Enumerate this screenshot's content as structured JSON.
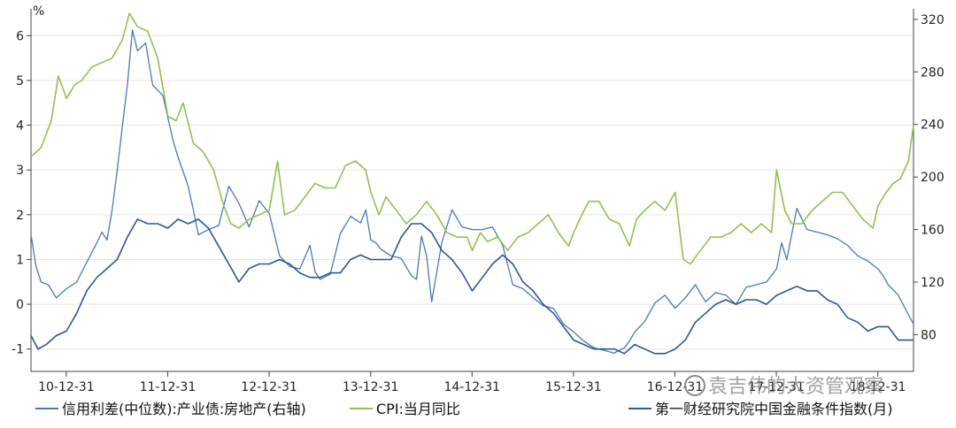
{
  "chart_data": {
    "type": "line",
    "left_axis": {
      "unit": "%",
      "ticks": [
        "-1",
        "0",
        "1",
        "2",
        "3",
        "4",
        "5",
        "6"
      ],
      "range": [
        -1.5,
        6.6
      ]
    },
    "right_axis": {
      "ticks": [
        "80",
        "120",
        "160",
        "200",
        "240",
        "280",
        "320"
      ],
      "range": [
        52,
        328
      ]
    },
    "x_ticks": [
      "10-12-31",
      "11-12-31",
      "12-12-31",
      "13-12-31",
      "14-12-31",
      "15-12-31",
      "16-12-31",
      "17-12-31",
      "18-12-31"
    ],
    "x_range": [
      2010.65,
      2019.35
    ],
    "series": [
      {
        "name": "信用利差(中位数):产业债:房地产(右轴)",
        "axis": "right",
        "color": "#4a78b6",
        "x": [
          2010.65,
          2010.7,
          2010.75,
          2010.82,
          2010.9,
          2011.0,
          2011.1,
          2011.2,
          2011.3,
          2011.35,
          2011.4,
          2011.45,
          2011.5,
          2011.55,
          2011.6,
          2011.65,
          2011.7,
          2011.78,
          2011.85,
          2011.95,
          2012.05,
          2012.1,
          2012.2,
          2012.25,
          2012.3,
          2012.4,
          2012.5,
          2012.6,
          2012.7,
          2012.8,
          2012.9,
          2013.0,
          2013.1,
          2013.2,
          2013.3,
          2013.4,
          2013.45,
          2013.5,
          2013.6,
          2013.7,
          2013.8,
          2013.9,
          2013.95,
          2014.0,
          2014.05,
          2014.1,
          2014.2,
          2014.3,
          2014.4,
          2014.45,
          2014.5,
          2014.55,
          2014.6,
          2014.7,
          2014.8,
          2014.9,
          2015.0,
          2015.1,
          2015.2,
          2015.3,
          2015.4,
          2015.5,
          2015.6,
          2015.7,
          2015.8,
          2015.9,
          2016.0,
          2016.1,
          2016.2,
          2016.3,
          2016.4,
          2016.5,
          2016.55,
          2016.6,
          2016.7,
          2016.8,
          2016.9,
          2017.0,
          2017.1,
          2017.2,
          2017.3,
          2017.4,
          2017.5,
          2017.6,
          2017.7,
          2017.8,
          2017.9,
          2018.0,
          2018.05,
          2018.1,
          2018.2,
          2018.3,
          2018.4,
          2018.5,
          2018.6,
          2018.7,
          2018.8,
          2018.9,
          2019.0,
          2019.05,
          2019.1,
          2019.2,
          2019.3,
          2019.35
        ],
        "values": [
          156,
          132,
          120,
          118,
          108,
          115,
          120,
          135,
          150,
          158,
          152,
          175,
          205,
          238,
          270,
          312,
          296,
          302,
          270,
          262,
          228,
          215,
          193,
          175,
          156,
          160,
          163,
          193,
          180,
          162,
          182,
          172,
          140,
          132,
          130,
          148,
          128,
          122,
          126,
          157,
          170,
          165,
          175,
          152,
          150,
          145,
          140,
          138,
          125,
          122,
          155,
          140,
          105,
          150,
          175,
          162,
          160,
          160,
          162,
          148,
          118,
          115,
          108,
          102,
          100,
          88,
          82,
          75,
          70,
          68,
          66,
          70,
          75,
          82,
          90,
          104,
          110,
          100,
          108,
          118,
          105,
          112,
          110,
          103,
          116,
          118,
          120,
          130,
          150,
          137,
          176,
          160,
          158,
          156,
          153,
          148,
          140,
          136,
          130,
          125,
          118,
          110,
          95,
          88
        ],
        "values_note": ""
      },
      {
        "name": "CPI:当月同比",
        "axis": "left",
        "color": "#92c050",
        "x": [
          2010.65,
          2010.75,
          2010.85,
          2010.92,
          2011.0,
          2011.08,
          2011.15,
          2011.25,
          2011.35,
          2011.45,
          2011.55,
          2011.62,
          2011.7,
          2011.8,
          2011.9,
          2012.0,
          2012.08,
          2012.15,
          2012.25,
          2012.35,
          2012.45,
          2012.55,
          2012.62,
          2012.7,
          2012.8,
          2012.9,
          2013.0,
          2013.08,
          2013.15,
          2013.25,
          2013.35,
          2013.45,
          2013.55,
          2013.65,
          2013.75,
          2013.85,
          2013.95,
          2014.0,
          2014.08,
          2014.15,
          2014.25,
          2014.35,
          2014.45,
          2014.55,
          2014.65,
          2014.75,
          2014.85,
          2014.95,
          2015.0,
          2015.08,
          2015.15,
          2015.25,
          2015.35,
          2015.45,
          2015.55,
          2015.65,
          2015.75,
          2015.85,
          2015.95,
          2016.0,
          2016.08,
          2016.15,
          2016.25,
          2016.35,
          2016.45,
          2016.55,
          2016.62,
          2016.7,
          2016.8,
          2016.9,
          2017.0,
          2017.08,
          2017.15,
          2017.25,
          2017.35,
          2017.45,
          2017.55,
          2017.65,
          2017.75,
          2017.85,
          2017.95,
          2018.0,
          2018.08,
          2018.15,
          2018.25,
          2018.35,
          2018.45,
          2018.55,
          2018.65,
          2018.75,
          2018.85,
          2018.95,
          2019.0,
          2019.08,
          2019.15,
          2019.22,
          2019.3,
          2019.35
        ],
        "values": [
          3.3,
          3.5,
          4.1,
          5.1,
          4.6,
          4.9,
          5.0,
          5.3,
          5.4,
          5.5,
          5.9,
          6.5,
          6.2,
          6.1,
          5.5,
          4.2,
          4.1,
          4.5,
          3.6,
          3.4,
          3.0,
          2.2,
          1.8,
          1.7,
          1.9,
          2.0,
          2.1,
          3.2,
          2.0,
          2.1,
          2.4,
          2.7,
          2.6,
          2.6,
          3.1,
          3.2,
          3.0,
          2.5,
          2.0,
          2.4,
          2.1,
          1.8,
          2.0,
          2.3,
          2.0,
          1.6,
          1.5,
          1.5,
          1.2,
          1.6,
          1.4,
          1.5,
          1.2,
          1.5,
          1.6,
          1.8,
          2.0,
          1.6,
          1.3,
          1.6,
          2.0,
          2.3,
          2.3,
          1.9,
          1.8,
          1.3,
          1.9,
          2.1,
          2.3,
          2.1,
          2.5,
          1.0,
          0.9,
          1.2,
          1.5,
          1.5,
          1.6,
          1.8,
          1.6,
          1.8,
          1.6,
          3.0,
          2.1,
          1.8,
          1.8,
          2.1,
          2.3,
          2.5,
          2.5,
          2.2,
          1.9,
          1.7,
          2.2,
          2.5,
          2.7,
          2.8,
          3.2,
          4.0
        ],
        "values_note": ""
      },
      {
        "name": "第一财经研究院中国金融条件指数(月)",
        "axis": "left",
        "color": "#2e5597",
        "x": [
          2010.65,
          2010.72,
          2010.8,
          2010.9,
          2011.0,
          2011.1,
          2011.2,
          2011.3,
          2011.4,
          2011.5,
          2011.6,
          2011.7,
          2011.8,
          2011.9,
          2012.0,
          2012.1,
          2012.2,
          2012.3,
          2012.4,
          2012.5,
          2012.6,
          2012.7,
          2012.8,
          2012.9,
          2013.0,
          2013.1,
          2013.2,
          2013.3,
          2013.4,
          2013.5,
          2013.6,
          2013.7,
          2013.8,
          2013.9,
          2014.0,
          2014.1,
          2014.2,
          2014.3,
          2014.4,
          2014.5,
          2014.6,
          2014.7,
          2014.8,
          2014.9,
          2015.0,
          2015.1,
          2015.2,
          2015.3,
          2015.4,
          2015.5,
          2015.6,
          2015.7,
          2015.8,
          2015.9,
          2016.0,
          2016.1,
          2016.2,
          2016.3,
          2016.4,
          2016.5,
          2016.6,
          2016.7,
          2016.8,
          2016.9,
          2017.0,
          2017.1,
          2017.2,
          2017.3,
          2017.4,
          2017.5,
          2017.6,
          2017.7,
          2017.8,
          2017.9,
          2018.0,
          2018.1,
          2018.2,
          2018.3,
          2018.4,
          2018.5,
          2018.6,
          2018.7,
          2018.8,
          2018.9,
          2019.0,
          2019.1,
          2019.2,
          2019.3,
          2019.35
        ],
        "values": [
          -0.7,
          -1.0,
          -0.9,
          -0.7,
          -0.6,
          -0.2,
          0.3,
          0.6,
          0.8,
          1.0,
          1.5,
          1.9,
          1.8,
          1.8,
          1.7,
          1.9,
          1.8,
          1.9,
          1.7,
          1.3,
          0.9,
          0.5,
          0.8,
          0.9,
          0.9,
          1.0,
          0.9,
          0.7,
          0.6,
          0.6,
          0.7,
          0.7,
          1.0,
          1.1,
          1.0,
          1.0,
          1.0,
          1.5,
          1.8,
          1.8,
          1.6,
          1.2,
          1.0,
          0.7,
          0.3,
          0.6,
          0.9,
          1.1,
          0.9,
          0.5,
          0.3,
          0.0,
          -0.2,
          -0.5,
          -0.8,
          -0.9,
          -1.0,
          -1.0,
          -1.0,
          -1.1,
          -0.9,
          -1.0,
          -1.1,
          -1.1,
          -1.0,
          -0.8,
          -0.4,
          -0.2,
          0.0,
          0.1,
          0.0,
          0.1,
          0.1,
          0.0,
          0.2,
          0.3,
          0.4,
          0.3,
          0.3,
          0.1,
          0.0,
          -0.3,
          -0.4,
          -0.6,
          -0.5,
          -0.5,
          -0.8,
          -0.8,
          -0.8
        ],
        "values_note": ""
      }
    ],
    "legend_placement": "bottom",
    "grid": true
  },
  "watermark": "袁吉伟的大资管观察"
}
